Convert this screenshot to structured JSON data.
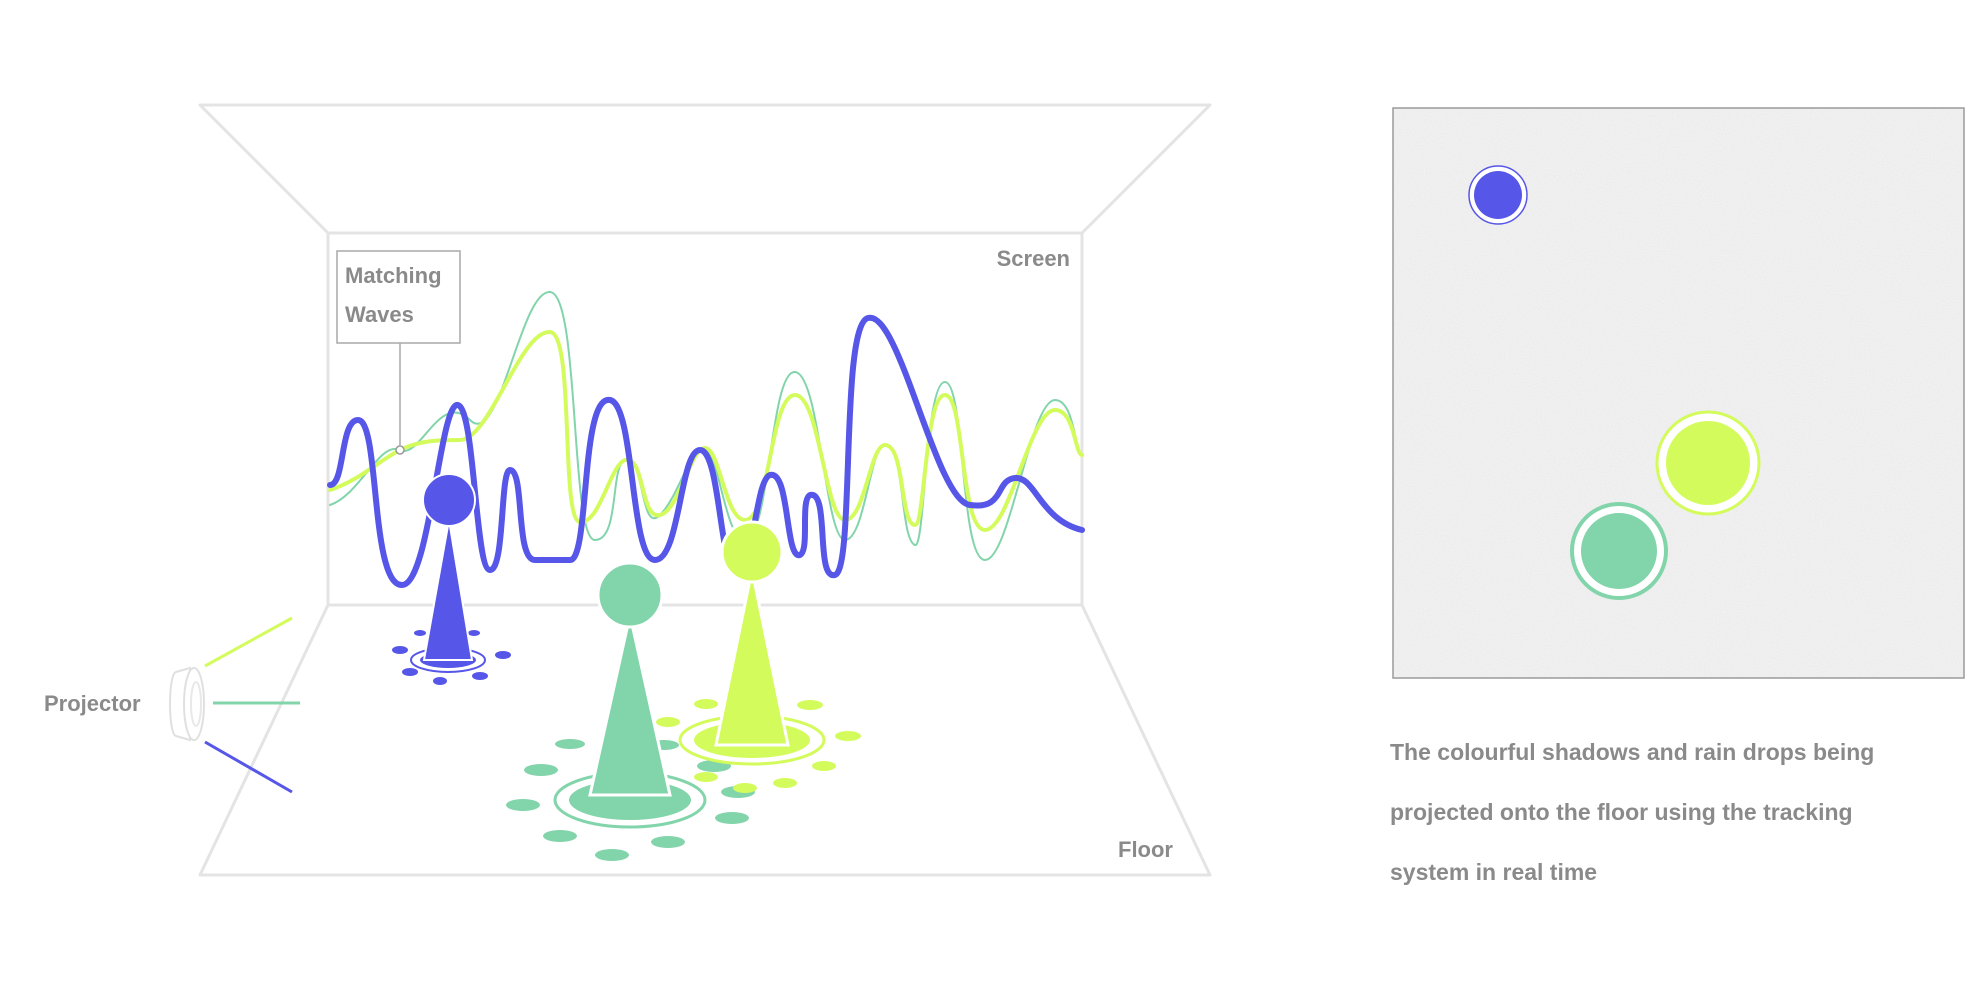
{
  "labels": {
    "screen": "Screen",
    "floor": "Floor",
    "projector": "Projector",
    "matching_waves_line1": "Matching",
    "matching_waves_line2": "Waves"
  },
  "caption": {
    "line1": "The colourful shadows and rain drops being",
    "line2": "projected onto the floor using the tracking",
    "line3": "system in real time"
  },
  "colors": {
    "blue": "#5656e8",
    "green": "#82d4aa",
    "yellow": "#d4fb5c",
    "outline": "#e4e4e4",
    "text": "#8a8a8a"
  }
}
